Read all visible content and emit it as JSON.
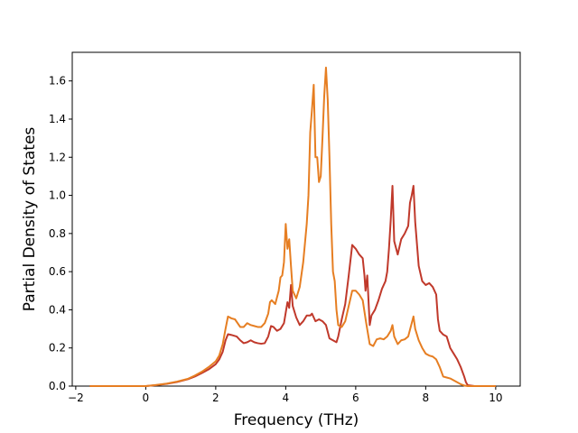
{
  "chart_data": {
    "type": "line",
    "title": "",
    "xlabel": "Frequency (THz)",
    "ylabel": "Partial Density of States",
    "xlim": [
      -2.1,
      10.7
    ],
    "ylim": [
      0,
      1.75
    ],
    "xticks": [
      -2,
      0,
      2,
      4,
      6,
      8,
      10
    ],
    "yticks": [
      0.0,
      0.2,
      0.4,
      0.6,
      0.8,
      1.0,
      1.2,
      1.4,
      1.6
    ],
    "grid": false,
    "legend": "none",
    "series": [
      {
        "color": "#c0392b",
        "points": [
          [
            -1.6,
            0
          ],
          [
            -1,
            0
          ],
          [
            -0.5,
            0
          ],
          [
            0,
            0
          ],
          [
            0.3,
            0.005
          ],
          [
            0.6,
            0.012
          ],
          [
            0.9,
            0.022
          ],
          [
            1.2,
            0.036
          ],
          [
            1.4,
            0.05
          ],
          [
            1.6,
            0.068
          ],
          [
            1.8,
            0.088
          ],
          [
            2.0,
            0.115
          ],
          [
            2.1,
            0.14
          ],
          [
            2.2,
            0.18
          ],
          [
            2.28,
            0.24
          ],
          [
            2.35,
            0.272
          ],
          [
            2.45,
            0.268
          ],
          [
            2.6,
            0.26
          ],
          [
            2.7,
            0.24
          ],
          [
            2.8,
            0.225
          ],
          [
            2.9,
            0.23
          ],
          [
            3.0,
            0.24
          ],
          [
            3.1,
            0.23
          ],
          [
            3.2,
            0.225
          ],
          [
            3.3,
            0.222
          ],
          [
            3.4,
            0.225
          ],
          [
            3.5,
            0.26
          ],
          [
            3.58,
            0.315
          ],
          [
            3.65,
            0.31
          ],
          [
            3.75,
            0.29
          ],
          [
            3.85,
            0.3
          ],
          [
            3.95,
            0.33
          ],
          [
            4.05,
            0.44
          ],
          [
            4.1,
            0.41
          ],
          [
            4.15,
            0.53
          ],
          [
            4.2,
            0.42
          ],
          [
            4.3,
            0.36
          ],
          [
            4.4,
            0.32
          ],
          [
            4.5,
            0.34
          ],
          [
            4.6,
            0.37
          ],
          [
            4.7,
            0.37
          ],
          [
            4.75,
            0.38
          ],
          [
            4.8,
            0.36
          ],
          [
            4.85,
            0.34
          ],
          [
            4.95,
            0.35
          ],
          [
            5.05,
            0.34
          ],
          [
            5.15,
            0.32
          ],
          [
            5.25,
            0.25
          ],
          [
            5.35,
            0.24
          ],
          [
            5.45,
            0.23
          ],
          [
            5.5,
            0.26
          ],
          [
            5.6,
            0.35
          ],
          [
            5.7,
            0.43
          ],
          [
            5.8,
            0.58
          ],
          [
            5.9,
            0.74
          ],
          [
            6.0,
            0.72
          ],
          [
            6.1,
            0.69
          ],
          [
            6.2,
            0.67
          ],
          [
            6.25,
            0.58
          ],
          [
            6.28,
            0.5
          ],
          [
            6.33,
            0.58
          ],
          [
            6.4,
            0.32
          ],
          [
            6.45,
            0.37
          ],
          [
            6.55,
            0.4
          ],
          [
            6.65,
            0.45
          ],
          [
            6.75,
            0.51
          ],
          [
            6.85,
            0.55
          ],
          [
            6.9,
            0.6
          ],
          [
            6.95,
            0.72
          ],
          [
            7.0,
            0.87
          ],
          [
            7.05,
            1.05
          ],
          [
            7.1,
            0.76
          ],
          [
            7.2,
            0.69
          ],
          [
            7.3,
            0.77
          ],
          [
            7.4,
            0.8
          ],
          [
            7.5,
            0.84
          ],
          [
            7.55,
            0.96
          ],
          [
            7.6,
            1.0
          ],
          [
            7.65,
            1.05
          ],
          [
            7.7,
            0.86
          ],
          [
            7.8,
            0.63
          ],
          [
            7.9,
            0.55
          ],
          [
            8.0,
            0.53
          ],
          [
            8.1,
            0.54
          ],
          [
            8.2,
            0.52
          ],
          [
            8.3,
            0.48
          ],
          [
            8.35,
            0.35
          ],
          [
            8.4,
            0.29
          ],
          [
            8.5,
            0.27
          ],
          [
            8.6,
            0.26
          ],
          [
            8.7,
            0.2
          ],
          [
            8.8,
            0.17
          ],
          [
            8.9,
            0.14
          ],
          [
            9.0,
            0.1
          ],
          [
            9.1,
            0.05
          ],
          [
            9.15,
            0.02
          ],
          [
            9.2,
            0.005
          ],
          [
            9.4,
            0
          ],
          [
            10,
            0
          ]
        ]
      },
      {
        "color": "#e67e22",
        "points": [
          [
            -1.6,
            0
          ],
          [
            -1,
            0
          ],
          [
            -0.5,
            0
          ],
          [
            0,
            0
          ],
          [
            0.3,
            0.006
          ],
          [
            0.6,
            0.013
          ],
          [
            0.9,
            0.024
          ],
          [
            1.2,
            0.038
          ],
          [
            1.4,
            0.055
          ],
          [
            1.6,
            0.075
          ],
          [
            1.8,
            0.1
          ],
          [
            2.0,
            0.13
          ],
          [
            2.1,
            0.16
          ],
          [
            2.2,
            0.22
          ],
          [
            2.28,
            0.3
          ],
          [
            2.35,
            0.365
          ],
          [
            2.45,
            0.355
          ],
          [
            2.55,
            0.35
          ],
          [
            2.7,
            0.31
          ],
          [
            2.8,
            0.31
          ],
          [
            2.9,
            0.33
          ],
          [
            3.0,
            0.32
          ],
          [
            3.1,
            0.315
          ],
          [
            3.2,
            0.31
          ],
          [
            3.3,
            0.31
          ],
          [
            3.4,
            0.33
          ],
          [
            3.5,
            0.38
          ],
          [
            3.55,
            0.44
          ],
          [
            3.6,
            0.45
          ],
          [
            3.7,
            0.43
          ],
          [
            3.8,
            0.5
          ],
          [
            3.85,
            0.57
          ],
          [
            3.9,
            0.58
          ],
          [
            3.95,
            0.65
          ],
          [
            4.0,
            0.85
          ],
          [
            4.05,
            0.72
          ],
          [
            4.1,
            0.77
          ],
          [
            4.15,
            0.63
          ],
          [
            4.2,
            0.5
          ],
          [
            4.3,
            0.46
          ],
          [
            4.4,
            0.52
          ],
          [
            4.5,
            0.65
          ],
          [
            4.6,
            0.85
          ],
          [
            4.65,
            1.0
          ],
          [
            4.7,
            1.33
          ],
          [
            4.75,
            1.45
          ],
          [
            4.8,
            1.58
          ],
          [
            4.85,
            1.2
          ],
          [
            4.9,
            1.2
          ],
          [
            4.95,
            1.07
          ],
          [
            5.0,
            1.1
          ],
          [
            5.05,
            1.3
          ],
          [
            5.1,
            1.52
          ],
          [
            5.15,
            1.67
          ],
          [
            5.2,
            1.5
          ],
          [
            5.25,
            1.2
          ],
          [
            5.3,
            0.85
          ],
          [
            5.35,
            0.6
          ],
          [
            5.4,
            0.55
          ],
          [
            5.45,
            0.4
          ],
          [
            5.5,
            0.32
          ],
          [
            5.6,
            0.31
          ],
          [
            5.7,
            0.34
          ],
          [
            5.8,
            0.42
          ],
          [
            5.9,
            0.5
          ],
          [
            6.0,
            0.5
          ],
          [
            6.1,
            0.48
          ],
          [
            6.2,
            0.45
          ],
          [
            6.3,
            0.33
          ],
          [
            6.4,
            0.22
          ],
          [
            6.5,
            0.21
          ],
          [
            6.6,
            0.245
          ],
          [
            6.7,
            0.25
          ],
          [
            6.8,
            0.245
          ],
          [
            6.9,
            0.26
          ],
          [
            7.0,
            0.29
          ],
          [
            7.05,
            0.32
          ],
          [
            7.1,
            0.26
          ],
          [
            7.2,
            0.22
          ],
          [
            7.3,
            0.24
          ],
          [
            7.4,
            0.245
          ],
          [
            7.5,
            0.26
          ],
          [
            7.6,
            0.33
          ],
          [
            7.65,
            0.365
          ],
          [
            7.7,
            0.3
          ],
          [
            7.8,
            0.24
          ],
          [
            7.9,
            0.2
          ],
          [
            8.0,
            0.17
          ],
          [
            8.1,
            0.16
          ],
          [
            8.2,
            0.155
          ],
          [
            8.3,
            0.14
          ],
          [
            8.4,
            0.1
          ],
          [
            8.5,
            0.05
          ],
          [
            8.6,
            0.045
          ],
          [
            8.7,
            0.04
          ],
          [
            8.8,
            0.03
          ],
          [
            8.9,
            0.02
          ],
          [
            9.0,
            0.01
          ],
          [
            9.1,
            0.003
          ],
          [
            9.2,
            0
          ],
          [
            10,
            0
          ]
        ]
      }
    ]
  }
}
